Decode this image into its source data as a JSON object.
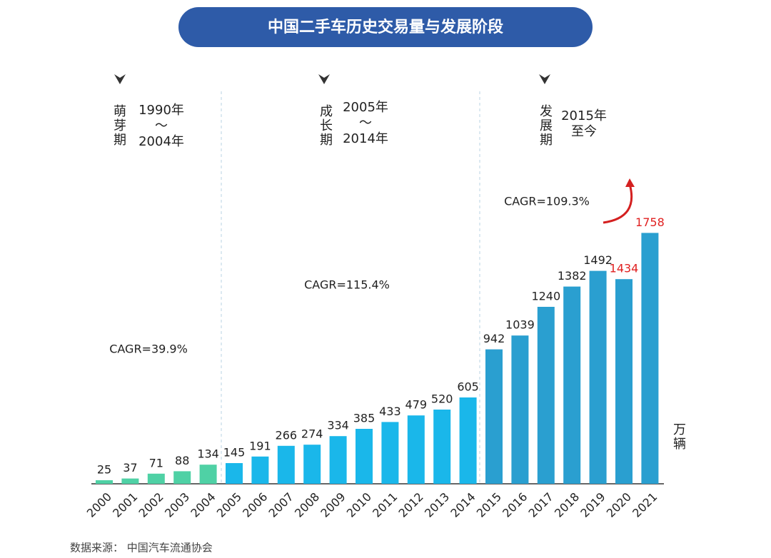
{
  "chart_data": {
    "type": "bar",
    "title": "中国二手车历史交易量与发展阶段",
    "categories": [
      "2000",
      "2001",
      "2002",
      "2003",
      "2004",
      "2005",
      "2006",
      "2007",
      "2008",
      "2009",
      "2010",
      "2011",
      "2012",
      "2013",
      "2014",
      "2015",
      "2016",
      "2017",
      "2018",
      "2019",
      "2020",
      "2021"
    ],
    "values": [
      25,
      37,
      71,
      88,
      134,
      145,
      191,
      266,
      274,
      334,
      385,
      433,
      479,
      520,
      605,
      942,
      1039,
      1240,
      1382,
      1492,
      1434,
      1758
    ],
    "colors": [
      "#4fd1a5",
      "#4fd1a5",
      "#4fd1a5",
      "#4fd1a5",
      "#4fd1a5",
      "#1ab7ea",
      "#1ab7ea",
      "#1ab7ea",
      "#1ab7ea",
      "#1ab7ea",
      "#1ab7ea",
      "#1ab7ea",
      "#1ab7ea",
      "#1ab7ea",
      "#1ab7ea",
      "#2a9fd0",
      "#2a9fd0",
      "#2a9fd0",
      "#2a9fd0",
      "#2a9fd0",
      "#2a9fd0",
      "#2a9fd0"
    ],
    "label_colors": [
      "#222",
      "#222",
      "#222",
      "#222",
      "#222",
      "#222",
      "#222",
      "#222",
      "#222",
      "#222",
      "#222",
      "#222",
      "#222",
      "#222",
      "#222",
      "#222",
      "#222",
      "#222",
      "#222",
      "#222",
      "#e02020",
      "#e02020"
    ],
    "ylim": [
      0,
      2000
    ],
    "unit": "万辆",
    "phases": [
      {
        "name": "萌芽期",
        "period": [
          "1990年",
          "～",
          "2004年"
        ],
        "cagr": "CAGR=39.9%"
      },
      {
        "name": "成长期",
        "period": [
          "2005年",
          "～",
          "2014年"
        ],
        "cagr": "CAGR=115.4%"
      },
      {
        "name": "发展期",
        "period": [
          "2015年",
          "至今"
        ],
        "cagr": "CAGR=109.3%"
      }
    ],
    "source": "数据来源：   中国汽车流通协会"
  }
}
